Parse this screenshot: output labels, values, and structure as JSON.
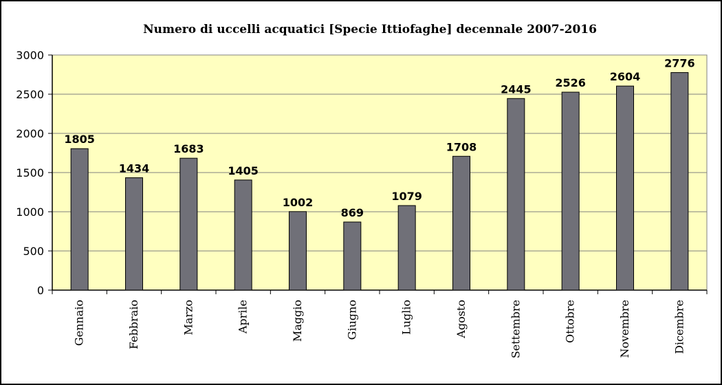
{
  "chart_data": {
    "type": "bar",
    "title": "Numero di uccelli acquatici [Specie Ittiofaghe] decennale 2007-2016",
    "xlabel": "",
    "ylabel": "",
    "categories": [
      "Gennaio",
      "Febbraio",
      "Marzo",
      "Aprile",
      "Maggio",
      "Giugno",
      "Luglio",
      "Agosto",
      "Settembre",
      "Ottobre",
      "Novembre",
      "Dicembre"
    ],
    "values": [
      1805,
      1434,
      1683,
      1405,
      1002,
      869,
      1079,
      1708,
      2445,
      2526,
      2604,
      2776
    ],
    "ylim": [
      0,
      3000
    ],
    "yticks": [
      0,
      500,
      1000,
      1500,
      2000,
      2500,
      3000
    ],
    "grid": true,
    "legend": "none",
    "colors": {
      "plot_background": "#FFFFC0",
      "bar_fill": "#707078",
      "bar_stroke": "#000000",
      "grid": "#808080"
    }
  }
}
